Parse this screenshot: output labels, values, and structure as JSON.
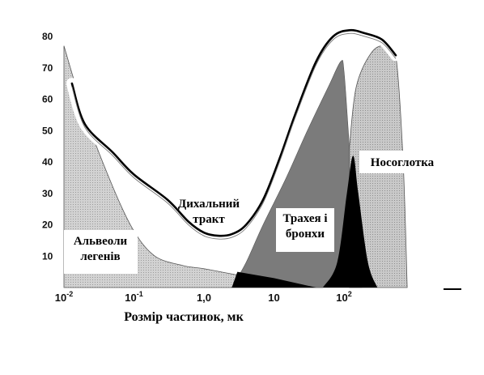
{
  "chart_data": {
    "type": "area",
    "xlabel": "Розмір частинок, мк",
    "ylabel": "",
    "x_scale": "log",
    "xlim": [
      0.01,
      1000
    ],
    "ylim": [
      0,
      90
    ],
    "y_ticks": [
      "10",
      "20",
      "30",
      "40",
      "50",
      "60",
      "70",
      "80"
    ],
    "x_ticks": [
      {
        "base": "10",
        "exp": "-2",
        "value": 0.01
      },
      {
        "base": "10",
        "exp": "-1",
        "value": 0.1
      },
      {
        "base": "1,0",
        "exp": "",
        "value": 1
      },
      {
        "base": "10",
        "exp": "",
        "value": 10
      },
      {
        "base": "10",
        "exp": "2",
        "value": 100
      }
    ],
    "colors": {
      "alveoli": "#c4c4c4",
      "trachea": "#7b7b7b",
      "nasopharynx_light": "#bdbdbd",
      "nasopharynx_dark": "#000000",
      "total_curve": "#000000"
    },
    "series": [
      {
        "key": "total",
        "name": "Дихальний тракт",
        "label_lines": [
          "Дихальний",
          "тракт"
        ],
        "x": [
          0.013,
          0.02,
          0.05,
          0.1,
          0.3,
          0.6,
          1.0,
          1.6,
          2.5,
          4,
          7,
          12,
          20,
          40,
          70,
          120,
          200,
          350,
          550
        ],
        "y": [
          65,
          52,
          43,
          36,
          28,
          21,
          17.5,
          16.5,
          17,
          20,
          28,
          41,
          55,
          72,
          80,
          82,
          81,
          79,
          74
        ]
      },
      {
        "key": "alveoli",
        "name": "Альвеоли легенів",
        "label_lines": [
          "Альвеоли",
          "легенів"
        ],
        "x": [
          0.01,
          0.02,
          0.05,
          0.1,
          0.2,
          0.5,
          1,
          3,
          10,
          30,
          50
        ],
        "y": [
          77,
          55,
          32,
          18,
          10,
          7,
          6,
          4,
          2,
          0.8,
          0
        ]
      },
      {
        "key": "trachea",
        "name": "Трахея і бронхи",
        "label_lines": [
          "Трахея і",
          "бронхи"
        ],
        "x": [
          2.5,
          4,
          7,
          15,
          30,
          60,
          90,
          100,
          115,
          140,
          180
        ],
        "y": [
          0,
          8,
          20,
          35,
          50,
          64,
          72,
          69,
          50,
          20,
          0
        ]
      },
      {
        "key": "nasopharynx",
        "name": "Носоглотка",
        "label_lines": [
          "Носоглотка"
        ],
        "x": [
          120,
          150,
          250,
          400,
          550,
          700,
          800
        ],
        "y": [
          45,
          64,
          75,
          77,
          74,
          40,
          0
        ]
      },
      {
        "key": "nasopharynx_core",
        "name": "",
        "x": [
          50,
          80,
          110,
          135,
          160,
          220,
          300
        ],
        "y": [
          0,
          8,
          30,
          42,
          30,
          8,
          0
        ]
      },
      {
        "key": "small_dark",
        "name": "",
        "x": [
          3,
          10,
          40
        ],
        "y": [
          5,
          3,
          0
        ]
      }
    ]
  }
}
